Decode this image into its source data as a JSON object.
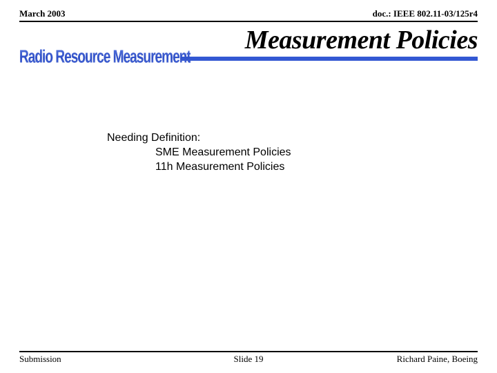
{
  "header": {
    "left": "March 2003",
    "right": "doc.: IEEE 802.11-03/125r4"
  },
  "title": "Measurement Policies",
  "wordart": "Radio Resource Measurement",
  "body": {
    "line1": "Needing Definition:",
    "line2": "SME Measurement Policies",
    "line3": "11h Measurement Policies"
  },
  "footer": {
    "left": "Submission",
    "center": "Slide 19",
    "right": "Richard Paine, Boeing"
  },
  "colors": {
    "accent": "#3358d3",
    "text": "#000000",
    "background": "#ffffff"
  }
}
